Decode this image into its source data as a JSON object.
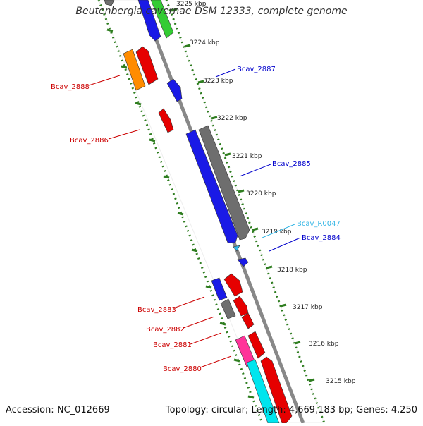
{
  "title": "Beutenbergia cavernae DSM 12333, complete genome",
  "accession_text": "Accession: NC_012669",
  "summary_text": "Topology: circular; Length: 4,669,183 bp; Genes: 4,250",
  "colors": {
    "backbone": "#888888",
    "ticks": "#2e7d1f",
    "red": "#e60000",
    "blue": "#1a1ae6",
    "gray": "#6e6e6e",
    "orange": "#ff8c00",
    "green": "#33cc33",
    "cyan": "#00e5ee",
    "pink": "#ff3399",
    "lightblue": "#33b5e5",
    "label_red": "#cc0000",
    "label_blue": "#0000cc",
    "label_cyan": "#33b5e5"
  },
  "scale_labels": [
    "3225 kbp",
    "3224 kbp",
    "3223 kbp",
    "3222 kbp",
    "3221 kbp",
    "3220 kbp",
    "3219 kbp",
    "3218 kbp",
    "3217 kbp",
    "3216 kbp",
    "3215 kbp"
  ],
  "gene_labels": [
    {
      "id": "Bcav_2887",
      "text": "Bcav_2887",
      "color": "blue"
    },
    {
      "id": "Bcav_2888",
      "text": "Bcav_2888",
      "color": "red"
    },
    {
      "id": "Bcav_2886",
      "text": "Bcav_2886",
      "color": "red"
    },
    {
      "id": "Bcav_2885",
      "text": "Bcav_2885",
      "color": "blue"
    },
    {
      "id": "Bcav_R0047",
      "text": "Bcav_R0047",
      "color": "cyan"
    },
    {
      "id": "Bcav_2884",
      "text": "Bcav_2884",
      "color": "blue"
    },
    {
      "id": "Bcav_2883",
      "text": "Bcav_2883",
      "color": "red"
    },
    {
      "id": "Bcav_2882",
      "text": "Bcav_2882",
      "color": "red"
    },
    {
      "id": "Bcav_2881",
      "text": "Bcav_2881",
      "color": "red"
    },
    {
      "id": "Bcav_2880",
      "text": "Bcav_2880",
      "color": "red"
    }
  ]
}
